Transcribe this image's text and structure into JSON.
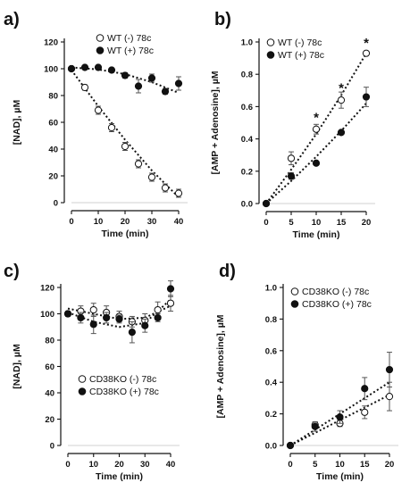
{
  "chart_data": [
    {
      "type": "scatter",
      "panel": "a)",
      "xlabel": "Time (min)",
      "ylabel": "[NAD], µM",
      "xlim": [
        0,
        40
      ],
      "ylim": [
        0,
        120
      ],
      "xticks": [
        0,
        10,
        20,
        30,
        40
      ],
      "yticks": [
        0,
        20,
        40,
        60,
        80,
        100,
        120
      ],
      "legend": "top-right",
      "series": [
        {
          "name": "WT (-) 78c",
          "marker": "open",
          "x": [
            0,
            5,
            10,
            15,
            20,
            25,
            30,
            35,
            40
          ],
          "y": [
            100,
            86,
            69,
            56,
            42,
            29,
            19,
            11,
            7
          ],
          "err": [
            1.5,
            2,
            3,
            3,
            3,
            3,
            3,
            3,
            3
          ],
          "fit": [
            [
              0,
              99
            ],
            [
              10,
              72
            ],
            [
              20,
              47
            ],
            [
              30,
              24
            ],
            [
              40,
              4
            ]
          ]
        },
        {
          "name": "WT (+) 78c",
          "marker": "filled",
          "x": [
            0,
            5,
            10,
            15,
            20,
            25,
            30,
            35,
            40
          ],
          "y": [
            100,
            101,
            101,
            99,
            95,
            87,
            93,
            83,
            89
          ],
          "err": [
            1.5,
            1,
            1,
            1.5,
            2,
            5,
            3,
            2,
            5
          ],
          "fit": [
            [
              0,
              101
            ],
            [
              10,
              99.5
            ],
            [
              20,
              96
            ],
            [
              30,
              90
            ],
            [
              40,
              82
            ]
          ]
        }
      ],
      "annotations": []
    },
    {
      "type": "scatter",
      "panel": "b)",
      "xlabel": "Time (min)",
      "ylabel": "[AMP + Adenosine], µM",
      "xlim": [
        0,
        20
      ],
      "ylim": [
        0,
        1.0
      ],
      "xticks": [
        0,
        5,
        10,
        15,
        20
      ],
      "yticks": [
        "0.0",
        "0.2",
        "0.4",
        "0.6",
        "0.8",
        "1.0"
      ],
      "legend": "top-left",
      "series": [
        {
          "name": "WT (-) 78c",
          "marker": "open",
          "x": [
            0,
            5,
            10,
            15,
            20
          ],
          "y": [
            0,
            0.28,
            0.46,
            0.64,
            0.93
          ],
          "err": [
            0,
            0.04,
            0.03,
            0.05,
            0.01
          ],
          "fit": [
            [
              0,
              0
            ],
            [
              5,
              0.21
            ],
            [
              10,
              0.43
            ],
            [
              15,
              0.67
            ],
            [
              20,
              0.93
            ]
          ]
        },
        {
          "name": "WT (+) 78c",
          "marker": "filled",
          "x": [
            0,
            5,
            10,
            15,
            20
          ],
          "y": [
            0,
            0.17,
            0.25,
            0.44,
            0.66
          ],
          "err": [
            0,
            0.02,
            0.01,
            0.01,
            0.06
          ],
          "fit": [
            [
              0,
              0
            ],
            [
              5,
              0.14
            ],
            [
              10,
              0.29
            ],
            [
              15,
              0.45
            ],
            [
              20,
              0.62
            ]
          ]
        }
      ],
      "annotations": [
        {
          "text": "*",
          "x": 10,
          "y": 0.54
        },
        {
          "text": "*",
          "x": 15,
          "y": 0.72
        },
        {
          "text": "*",
          "x": 20,
          "y": 1.0
        }
      ]
    },
    {
      "type": "scatter",
      "panel": "c)",
      "xlabel": "Time (min)",
      "ylabel": "[NAD], µM",
      "xlim": [
        0,
        40
      ],
      "ylim": [
        0,
        120
      ],
      "xticks": [
        0,
        10,
        20,
        30,
        40
      ],
      "yticks": [
        0,
        20,
        40,
        60,
        80,
        100,
        120
      ],
      "legend": "bottom-left",
      "series": [
        {
          "name": "CD38KO (-) 78c",
          "marker": "open",
          "x": [
            0,
            5,
            10,
            15,
            20,
            25,
            30,
            35,
            40
          ],
          "y": [
            100,
            102,
            103,
            101,
            98,
            94,
            95,
            103,
            108
          ],
          "err": [
            1.5,
            4,
            5,
            5,
            4,
            4,
            5,
            6,
            6
          ],
          "fit": [
            [
              0,
              104
            ],
            [
              10,
              100
            ],
            [
              20,
              96
            ],
            [
              30,
              97
            ],
            [
              40,
              106
            ]
          ]
        },
        {
          "name": "CD38KO (+) 78c",
          "marker": "filled",
          "x": [
            0,
            5,
            10,
            15,
            20,
            25,
            30,
            35,
            40
          ],
          "y": [
            100,
            97,
            92,
            97,
            96,
            86,
            91,
            97,
            119
          ],
          "err": [
            2,
            4,
            7,
            4,
            3,
            8,
            5,
            3,
            6
          ],
          "fit": [
            [
              0,
              101
            ],
            [
              10,
              94
            ],
            [
              20,
              90
            ],
            [
              30,
              93
            ],
            [
              40,
              111
            ]
          ]
        }
      ],
      "annotations": []
    },
    {
      "type": "scatter",
      "panel": "d)",
      "xlabel": "Time (min)",
      "ylabel": "[AMP + Adenosine], µM",
      "xlim": [
        0,
        20
      ],
      "ylim": [
        0,
        1.0
      ],
      "xticks": [
        0,
        5,
        10,
        15,
        20
      ],
      "yticks": [
        "0.0",
        "0.2",
        "0.4",
        "0.6",
        "0.8",
        "1.0"
      ],
      "legend": "top-left",
      "series": [
        {
          "name": "CD38KO (-) 78c",
          "marker": "open",
          "x": [
            0,
            5,
            10,
            15,
            20
          ],
          "y": [
            0,
            0.13,
            0.14,
            0.21,
            0.31
          ],
          "err": [
            0,
            0.02,
            0.02,
            0.04,
            0.09
          ],
          "fit": [
            [
              0,
              0
            ],
            [
              5,
              0.08
            ],
            [
              10,
              0.16
            ],
            [
              15,
              0.24
            ],
            [
              20,
              0.32
            ]
          ]
        },
        {
          "name": "CD38KO (+) 78c",
          "marker": "filled",
          "x": [
            0,
            5,
            10,
            15,
            20
          ],
          "y": [
            0,
            0.12,
            0.18,
            0.36,
            0.48
          ],
          "err": [
            0,
            0.03,
            0.04,
            0.07,
            0.11
          ],
          "fit": [
            [
              0,
              0
            ],
            [
              5,
              0.1
            ],
            [
              10,
              0.2
            ],
            [
              15,
              0.3
            ],
            [
              20,
              0.4
            ]
          ]
        }
      ],
      "annotations": []
    }
  ]
}
